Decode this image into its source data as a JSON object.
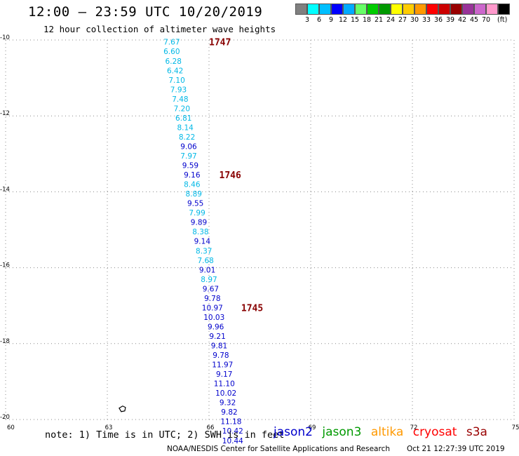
{
  "header": {
    "title": "12:00 – 23:59 UTC 10/20/2019",
    "subtitle": "12 hour collection of altimeter wave heights"
  },
  "colorbar": {
    "colors": [
      "#808080",
      "#00ffff",
      "#00bfff",
      "#0000ff",
      "#00aaff",
      "#66ff66",
      "#00cc00",
      "#009900",
      "#ffff00",
      "#ffcc00",
      "#ff9900",
      "#ff0000",
      "#cc0000",
      "#990000",
      "#993399",
      "#cc66cc",
      "#ff99cc",
      "#000000"
    ],
    "ticks": [
      "3",
      "6",
      "9",
      "12",
      "15",
      "18",
      "21",
      "24",
      "27",
      "30",
      "33",
      "36",
      "39",
      "42",
      "45",
      "70"
    ],
    "unit": "(ft)"
  },
  "chart_data": {
    "type": "scatter",
    "title": "12:00 – 23:59 UTC 10/20/2019",
    "subtitle": "12 hour collection of altimeter wave heights",
    "xlim": [
      60,
      75
    ],
    "ylim": [
      -20,
      -10
    ],
    "xticks": [
      "60",
      "63",
      "66",
      "69",
      "72",
      "75"
    ],
    "yticks": [
      "-10",
      "-12",
      "-14",
      "-16",
      "-18",
      "-20"
    ],
    "grid": true,
    "time_labels": [
      {
        "text": "1747",
        "lon": 66.0,
        "lat": -10.05
      },
      {
        "text": "1746",
        "lon": 66.3,
        "lat": -13.55
      },
      {
        "text": "1745",
        "lon": 66.95,
        "lat": -17.05
      }
    ],
    "series": [
      {
        "name": "jason2",
        "color": "#0000cc"
      },
      {
        "name": "jason3",
        "color": "#009900"
      },
      {
        "name": "altika",
        "color": "#ff9900"
      },
      {
        "name": "cryosat",
        "color": "#ff0000"
      },
      {
        "name": "s3a",
        "color": "#990000"
      }
    ],
    "points": [
      {
        "lon": 64.9,
        "lat": -10.05,
        "swh": "7.67"
      },
      {
        "lon": 64.9,
        "lat": -10.3,
        "swh": "6.60"
      },
      {
        "lon": 64.95,
        "lat": -10.55,
        "swh": "6.28"
      },
      {
        "lon": 65.0,
        "lat": -10.8,
        "swh": "6.42"
      },
      {
        "lon": 65.05,
        "lat": -11.05,
        "swh": "7.10"
      },
      {
        "lon": 65.1,
        "lat": -11.3,
        "swh": "7.93"
      },
      {
        "lon": 65.15,
        "lat": -11.55,
        "swh": "7.48"
      },
      {
        "lon": 65.2,
        "lat": -11.8,
        "swh": "7.20"
      },
      {
        "lon": 65.25,
        "lat": -12.05,
        "swh": "6.81"
      },
      {
        "lon": 65.3,
        "lat": -12.3,
        "swh": "8.14"
      },
      {
        "lon": 65.35,
        "lat": -12.55,
        "swh": "8.22"
      },
      {
        "lon": 65.4,
        "lat": -12.8,
        "swh": "9.06"
      },
      {
        "lon": 65.4,
        "lat": -13.05,
        "swh": "7.97"
      },
      {
        "lon": 65.45,
        "lat": -13.3,
        "swh": "9.59"
      },
      {
        "lon": 65.5,
        "lat": -13.55,
        "swh": "9.16"
      },
      {
        "lon": 65.5,
        "lat": -13.8,
        "swh": "8.46"
      },
      {
        "lon": 65.55,
        "lat": -14.05,
        "swh": "8.89"
      },
      {
        "lon": 65.6,
        "lat": -14.3,
        "swh": "9.55"
      },
      {
        "lon": 65.65,
        "lat": -14.55,
        "swh": "7.99"
      },
      {
        "lon": 65.7,
        "lat": -14.8,
        "swh": "9.89"
      },
      {
        "lon": 65.75,
        "lat": -15.05,
        "swh": "8.38"
      },
      {
        "lon": 65.8,
        "lat": -15.3,
        "swh": "9.14"
      },
      {
        "lon": 65.85,
        "lat": -15.55,
        "swh": "8.37"
      },
      {
        "lon": 65.9,
        "lat": -15.8,
        "swh": "7.68"
      },
      {
        "lon": 65.95,
        "lat": -16.05,
        "swh": "9.01"
      },
      {
        "lon": 66.0,
        "lat": -16.3,
        "swh": "8.97"
      },
      {
        "lon": 66.05,
        "lat": -16.55,
        "swh": "9.67"
      },
      {
        "lon": 66.1,
        "lat": -16.8,
        "swh": "9.78"
      },
      {
        "lon": 66.1,
        "lat": -17.05,
        "swh": "10.97"
      },
      {
        "lon": 66.15,
        "lat": -17.3,
        "swh": "10.03"
      },
      {
        "lon": 66.2,
        "lat": -17.55,
        "swh": "9.96"
      },
      {
        "lon": 66.25,
        "lat": -17.8,
        "swh": "9.21"
      },
      {
        "lon": 66.3,
        "lat": -18.05,
        "swh": "9.81"
      },
      {
        "lon": 66.35,
        "lat": -18.3,
        "swh": "9.78"
      },
      {
        "lon": 66.4,
        "lat": -18.55,
        "swh": "11.97"
      },
      {
        "lon": 66.45,
        "lat": -18.8,
        "swh": "9.17"
      },
      {
        "lon": 66.45,
        "lat": -19.05,
        "swh": "11.10"
      },
      {
        "lon": 66.5,
        "lat": -19.3,
        "swh": "10.02"
      },
      {
        "lon": 66.55,
        "lat": -19.55,
        "swh": "9.32"
      },
      {
        "lon": 66.6,
        "lat": -19.8,
        "swh": "9.82"
      },
      {
        "lon": 66.65,
        "lat": -20.05,
        "swh": "11.18"
      },
      {
        "lon": 66.7,
        "lat": -20.3,
        "swh": "10.42"
      },
      {
        "lon": 66.7,
        "lat": -20.55,
        "swh": "10.44"
      }
    ]
  },
  "footer": {
    "note": "note: 1) Time is in UTC; 2) SWH is in feet",
    "credit": "NOAA/NESDIS Center for Satellite Applications and Research",
    "timestamp": "Oct 21 12:27:39 UTC 2019"
  },
  "legend": [
    "jason2",
    "jason3",
    "altika",
    "cryosat",
    "s3a"
  ]
}
